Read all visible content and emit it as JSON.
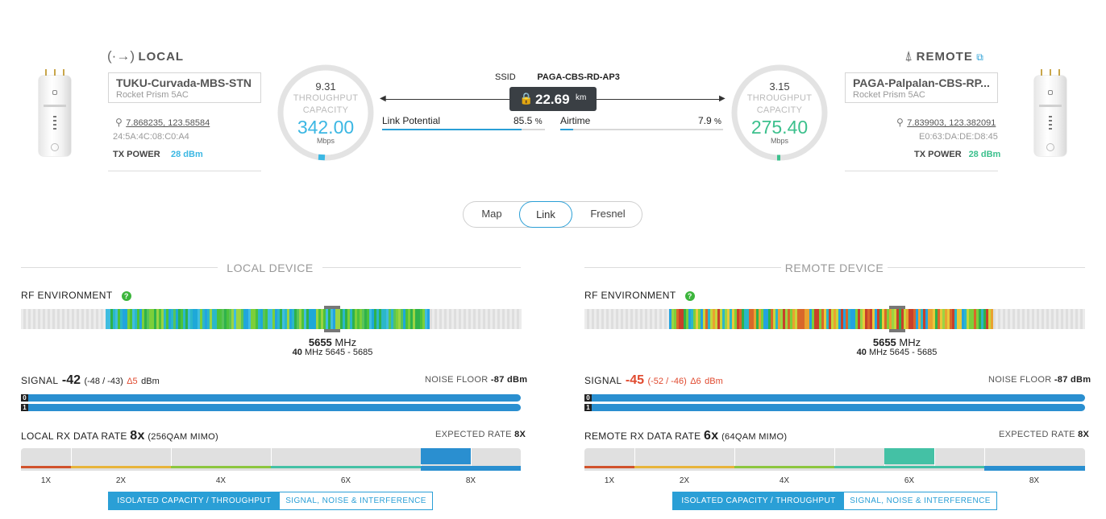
{
  "local": {
    "title": "LOCAL",
    "icon": "broadcast-icon",
    "name": "TUKU-Curvada-MBS-STN",
    "model": "Rocket Prism 5AC",
    "coords": "7.868235, 123.58584",
    "mac": "24:5A:4C:08:C0:A4",
    "tx_power_label": "TX POWER",
    "tx_power_value": "28 dBm",
    "gauge": {
      "top": "9.31",
      "label1": "THROUGHPUT",
      "label2": "CAPACITY",
      "big": "342.00",
      "unit": "Mbps",
      "color": "#3bb7e3"
    }
  },
  "remote": {
    "title": "REMOTE",
    "icon": "antenna-tower-icon",
    "name": "PAGA-Palpalan-CBS-RP...",
    "model": "Rocket Prism 5AC",
    "coords": "7.839903, 123.382091",
    "mac": "E0:63:DA:DE:D8:45",
    "tx_power_label": "TX POWER",
    "tx_power_value": "28 dBm",
    "gauge": {
      "top": "3.15",
      "label1": "THROUGHPUT",
      "label2": "CAPACITY",
      "big": "275.40",
      "unit": "Mbps",
      "color": "#3cc08d"
    }
  },
  "link": {
    "ssid_label": "SSID",
    "ssid": "PAGA-CBS-RD-AP3",
    "distance": "22.69",
    "distance_unit": "km",
    "potential_label": "Link Potential",
    "potential_value": "85.5",
    "potential_unit": "%",
    "potential_fraction": 0.855,
    "airtime_label": "Airtime",
    "airtime_value": "7.9",
    "airtime_unit": "%",
    "airtime_fraction": 0.079
  },
  "view_tabs": [
    {
      "label": "Map",
      "active": false
    },
    {
      "label": "Link",
      "active": true
    },
    {
      "label": "Fresnel",
      "active": false
    }
  ],
  "local_panel": {
    "section": "LOCAL DEVICE",
    "rf_label": "RF ENVIRONMENT",
    "freq": "5655",
    "freq_unit": "MHz",
    "width": "40",
    "width_unit": "MHz",
    "range": "5645 - 5685",
    "signal_label": "SIGNAL",
    "signal_value": "-42",
    "signal_chains": "(-48 / -43)",
    "signal_delta": "Δ5",
    "signal_unit": "dBm",
    "noise_label": "NOISE FLOOR",
    "noise_value": "-87 dBm",
    "chain0": "0",
    "chain1": "1",
    "rate_label": "LOCAL RX DATA RATE",
    "rate_value": "8x",
    "rate_mod": "(256QAM MIMO)",
    "expected_label": "EXPECTED RATE",
    "expected_value": "8X",
    "ticks": [
      "1X",
      "2X",
      "4X",
      "6X",
      "8X"
    ],
    "tab_active": "ISOLATED CAPACITY / THROUGHPUT",
    "tab_inactive": "SIGNAL, NOISE & INTERFERENCE"
  },
  "remote_panel": {
    "section": "REMOTE DEVICE",
    "rf_label": "RF ENVIRONMENT",
    "freq": "5655",
    "freq_unit": "MHz",
    "width": "40",
    "width_unit": "MHz",
    "range": "5645 - 5685",
    "signal_label": "SIGNAL",
    "signal_value": "-45",
    "signal_chains": "(-52 / -46)",
    "signal_delta": "Δ6",
    "signal_unit": "dBm",
    "noise_label": "NOISE FLOOR",
    "noise_value": "-87 dBm",
    "chain0": "0",
    "chain1": "1",
    "rate_label": "REMOTE RX DATA RATE",
    "rate_value": "6x",
    "rate_mod": "(64QAM MIMO)",
    "expected_label": "EXPECTED RATE",
    "expected_value": "8X",
    "ticks": [
      "1X",
      "2X",
      "4X",
      "6X",
      "8X"
    ],
    "tab_active": "ISOLATED CAPACITY / THROUGHPUT",
    "tab_inactive": "SIGNAL, NOISE & INTERFERENCE"
  },
  "colors": {
    "accent": "#2a9fd6",
    "local": "#3bb7e3",
    "remote": "#3cc08d",
    "warn": "#e04a2f"
  }
}
